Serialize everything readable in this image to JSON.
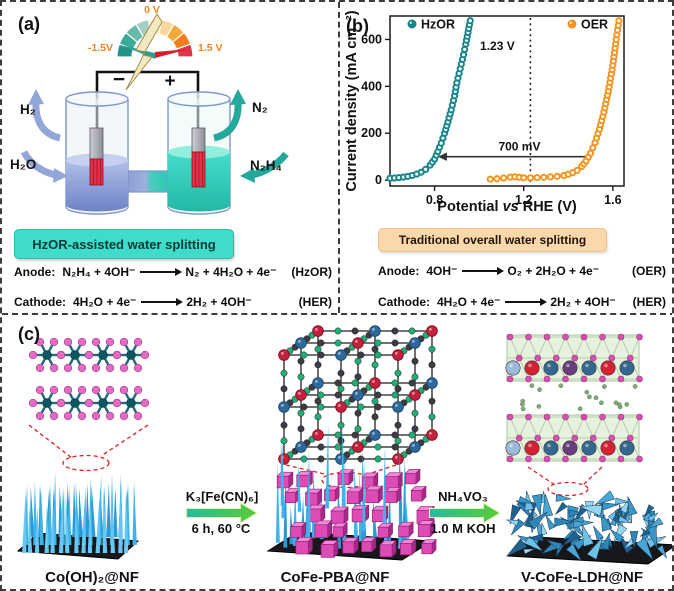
{
  "panel_a": {
    "tag": "(a)",
    "gauge": {
      "min": "-1.5V",
      "zero": "0 V",
      "max": "1.5 V"
    },
    "minus": "−",
    "plus": "+",
    "gas_left": "H₂",
    "feed_left": "H₂O",
    "gas_right": "N₂",
    "feed_right": "N₂H₄",
    "banner": "HzOR-assisted water splitting",
    "reactions": [
      {
        "site": "Anode:",
        "lhs": "N₂H₄ + 4OH⁻",
        "rhs": "N₂ + 4H₂O + 4e⁻",
        "tag": "(HzOR)"
      },
      {
        "site": "Cathode:",
        "lhs": "4H₂O + 4e⁻",
        "rhs": "2H₂ + 4OH⁻",
        "tag": "(HER)"
      }
    ]
  },
  "panel_b": {
    "tag": "(b)",
    "banner": "Traditional overall water splitting",
    "reactions": [
      {
        "site": "Anode:",
        "lhs": "4OH⁻",
        "rhs": "O₂ + 2H₂O + 4e⁻",
        "tag": "(OER)"
      },
      {
        "site": "Cathode:",
        "lhs": "4H₂O + 4e⁻",
        "rhs": "2H₂ + 4OH⁻",
        "tag": "(HER)"
      }
    ]
  },
  "panel_c": {
    "tag": "(c)",
    "stages": [
      "Co(OH)₂@NF",
      "CoFe-PBA@NF",
      "V-CoFe-LDH@NF"
    ],
    "steps": [
      {
        "top": "K₃[Fe(CN)₆]",
        "bottom": "6 h, 60 °C"
      },
      {
        "top": "NH₄VO₃",
        "bottom": "1.0 M KOH"
      }
    ]
  },
  "chart_data": {
    "type": "line",
    "marker": "open-circle",
    "title": "",
    "xlabel": "Potential vs RHE (V)",
    "xlabel_parts": {
      "pre": "Potential ",
      "it": "vs",
      "post": " RHE (V)"
    },
    "ylabel": "Current density (mA cm⁻²)",
    "xlim": [
      0.6,
      1.65
    ],
    "ylim": [
      0,
      700
    ],
    "xticks": [
      "0.8",
      "1.2",
      "1.6"
    ],
    "yticks": [
      "0",
      "200",
      "400",
      "600"
    ],
    "grid": false,
    "legend_position": "top-inside",
    "annotations": [
      {
        "type": "vline",
        "style": "dotted",
        "x": 1.23,
        "label": "1.23 V"
      },
      {
        "type": "arrow-left",
        "y": 100,
        "x_from": 1.475,
        "x_to": 0.815,
        "label": "700 mV"
      }
    ],
    "series": [
      {
        "name": "HzOR",
        "color": "#15868b",
        "x": [
          0.6,
          0.62,
          0.64,
          0.66,
          0.68,
          0.7,
          0.72,
          0.74,
          0.76,
          0.78,
          0.8,
          0.815,
          0.83,
          0.845,
          0.86,
          0.875,
          0.89,
          0.9,
          0.91,
          0.92,
          0.93,
          0.94,
          0.95,
          0.96,
          0.965
        ],
        "y": [
          8,
          9,
          11,
          13,
          16,
          20,
          26,
          34,
          46,
          64,
          90,
          122,
          158,
          200,
          248,
          300,
          360,
          415,
          455,
          495,
          535,
          580,
          630,
          680,
          700
        ]
      },
      {
        "name": "OER",
        "color": "#f5941f",
        "x": [
          1.05,
          1.08,
          1.11,
          1.14,
          1.16,
          1.18,
          1.2,
          1.23,
          1.26,
          1.29,
          1.32,
          1.35,
          1.38,
          1.4,
          1.42,
          1.44,
          1.46,
          1.48,
          1.5,
          1.52,
          1.54,
          1.56,
          1.58,
          1.6,
          1.615,
          1.63
        ],
        "y": [
          4,
          6,
          9,
          13,
          14,
          12,
          10,
          10,
          11,
          12,
          14,
          16,
          20,
          25,
          32,
          42,
          58,
          82,
          115,
          160,
          218,
          290,
          380,
          490,
          600,
          700
        ]
      }
    ]
  }
}
